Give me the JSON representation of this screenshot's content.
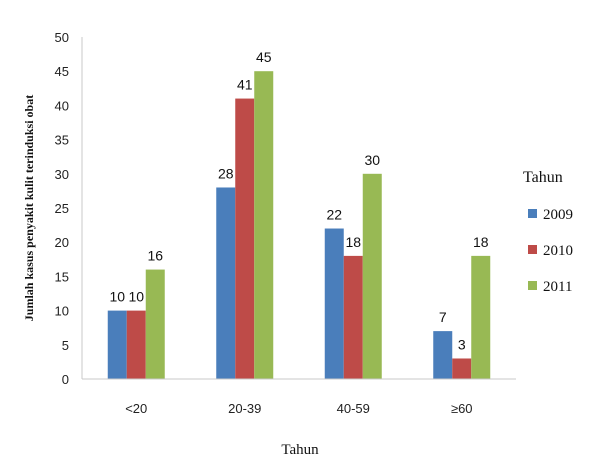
{
  "chart_data": {
    "type": "bar",
    "title": "",
    "xlabel": "Tahun",
    "ylabel": "Jumlah kasus penyakit kulit terinduksi obat",
    "categories": [
      "<20",
      "20-39",
      "40-59",
      "≥60"
    ],
    "ylim": [
      0,
      50
    ],
    "yticks": [
      0,
      5,
      10,
      15,
      20,
      25,
      30,
      35,
      40,
      45,
      50
    ],
    "grid": false,
    "legend_title": "Tahun",
    "legend_position": "right",
    "series": [
      {
        "name": "2009",
        "color": "#4a7ebb",
        "values": [
          10,
          28,
          22,
          7
        ]
      },
      {
        "name": "2010",
        "color": "#be4b48",
        "values": [
          10,
          41,
          18,
          3
        ]
      },
      {
        "name": "2011",
        "color": "#98b954",
        "values": [
          16,
          45,
          30,
          18
        ]
      }
    ]
  }
}
